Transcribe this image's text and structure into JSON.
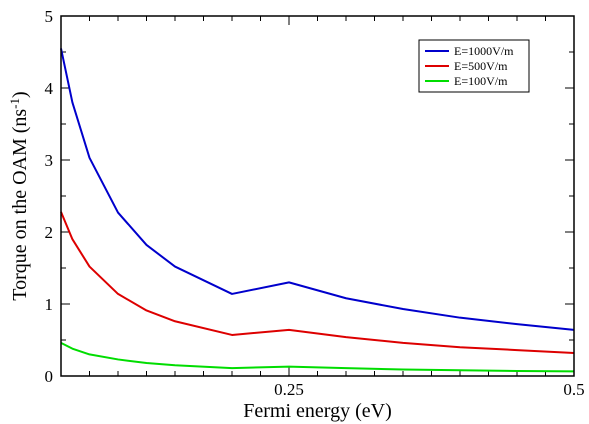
{
  "chart_data": {
    "type": "line",
    "xlabel": "Fermi energy (eV)",
    "ylabel_main": "Torque on the OAM (ns",
    "ylabel_exp": "-1",
    "ylabel_close": ")",
    "xlim": [
      0.05,
      0.5
    ],
    "ylim": [
      0,
      5
    ],
    "xticks": [
      {
        "value": 0.25,
        "label": "0.25"
      },
      {
        "value": 0.5,
        "label": "0.5"
      }
    ],
    "yticks": [
      {
        "value": 0,
        "label": "0"
      },
      {
        "value": 1,
        "label": "1"
      },
      {
        "value": 2,
        "label": "2"
      },
      {
        "value": 3,
        "label": "3"
      },
      {
        "value": 4,
        "label": "4"
      },
      {
        "value": 5,
        "label": "5"
      }
    ],
    "legend_position": "top-right",
    "series": [
      {
        "name": "E=1000V/m",
        "color": "#0000cc",
        "x": [
          0.05,
          0.06,
          0.075,
          0.1,
          0.125,
          0.15,
          0.2,
          0.25,
          0.3,
          0.35,
          0.4,
          0.45,
          0.5
        ],
        "y": [
          4.55,
          3.8,
          3.03,
          2.27,
          1.82,
          1.52,
          1.14,
          1.3,
          1.08,
          0.93,
          0.81,
          0.72,
          0.64
        ]
      },
      {
        "name": "E=500V/m",
        "color": "#dd0000",
        "x": [
          0.05,
          0.06,
          0.075,
          0.1,
          0.125,
          0.15,
          0.2,
          0.25,
          0.3,
          0.35,
          0.4,
          0.45,
          0.5
        ],
        "y": [
          2.28,
          1.9,
          1.52,
          1.14,
          0.91,
          0.76,
          0.57,
          0.64,
          0.54,
          0.46,
          0.4,
          0.36,
          0.32
        ]
      },
      {
        "name": "E=100V/m",
        "color": "#00dd00",
        "x": [
          0.05,
          0.06,
          0.075,
          0.1,
          0.125,
          0.15,
          0.2,
          0.25,
          0.3,
          0.35,
          0.4,
          0.45,
          0.5
        ],
        "y": [
          0.46,
          0.38,
          0.3,
          0.23,
          0.18,
          0.15,
          0.11,
          0.13,
          0.11,
          0.09,
          0.08,
          0.07,
          0.065
        ]
      }
    ]
  }
}
